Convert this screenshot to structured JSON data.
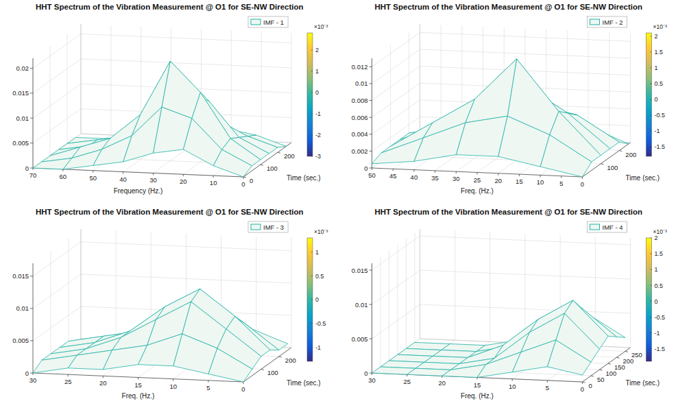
{
  "chart_data": [
    {
      "type": "surface",
      "title": "HHT Spectrum of the Vibration Measurement @ O1 for SE-NW Direction",
      "xlabel": "Frequency (Hz.)",
      "ylabel": "Time (sec.)",
      "series": [
        {
          "name": "IMF - 1",
          "color": "#1fb3a6"
        }
      ],
      "legend": "upper right",
      "grid": true,
      "x": [
        0,
        10,
        20,
        30,
        40,
        50,
        60,
        70
      ],
      "y": [
        0,
        50,
        100,
        150,
        200,
        250
      ],
      "z": [
        [
          0,
          0.002,
          0.005,
          0.004,
          0.002,
          0.001,
          0,
          0
        ],
        [
          0.001,
          0.004,
          0.01,
          0.012,
          0.006,
          0.003,
          0.001,
          0
        ],
        [
          0.001,
          0.005,
          0.014,
          0.02,
          0.009,
          0.004,
          0.002,
          0
        ],
        [
          0.001,
          0.004,
          0.011,
          0.013,
          0.007,
          0.003,
          0.001,
          0
        ],
        [
          0.001,
          0.003,
          0.006,
          0.007,
          0.004,
          0.002,
          0.001,
          0
        ],
        [
          0,
          0.002,
          0.003,
          0.003,
          0.002,
          0.001,
          0,
          0
        ]
      ],
      "xlim": [
        0,
        70
      ],
      "xticks": [
        0,
        10,
        20,
        30,
        40,
        50,
        60,
        70
      ],
      "ylim": [
        0,
        280
      ],
      "yticks": [
        0,
        100,
        200
      ],
      "zlim": [
        0,
        0.022
      ],
      "zticks": [
        0,
        0.005,
        0.01,
        0.015,
        0.02
      ],
      "colorbar": {
        "range": [
          -3,
          2.8
        ],
        "ticks": [
          -3,
          -2,
          -1,
          0,
          1,
          2
        ],
        "label": "×10⁻³"
      }
    },
    {
      "type": "surface",
      "title": "HHT Spectrum of the Vibration Measurement @ O1 for SE-NW Direction",
      "xlabel": "Freq. (Hz.)",
      "ylabel": "Time (sec.)",
      "series": [
        {
          "name": "IMF - 2",
          "color": "#1fb3a6"
        }
      ],
      "legend": "upper right",
      "grid": true,
      "x": [
        0,
        10,
        20,
        30,
        40,
        50
      ],
      "y": [
        0,
        50,
        100,
        150,
        200,
        250
      ],
      "z": [
        [
          0,
          0.001,
          0.002,
          0.002,
          0.001,
          0.0005
        ],
        [
          0.001,
          0.004,
          0.006,
          0.005,
          0.003,
          0.001
        ],
        [
          0.001,
          0.006,
          0.012,
          0.007,
          0.004,
          0.001
        ],
        [
          0.001,
          0.005,
          0.008,
          0.006,
          0.003,
          0.001
        ],
        [
          0.001,
          0.004,
          0.005,
          0.004,
          0.002,
          0.001
        ],
        [
          0,
          0.002,
          0.002,
          0.002,
          0.001,
          0
        ]
      ],
      "xlim": [
        0,
        50
      ],
      "xticks": [
        0,
        5,
        10,
        15,
        20,
        25,
        30,
        35,
        40,
        45,
        50
      ],
      "ylim": [
        0,
        260
      ],
      "yticks": [
        100,
        200
      ],
      "zlim": [
        0,
        0.013
      ],
      "zticks": [
        0,
        0.002,
        0.004,
        0.006,
        0.008,
        0.01,
        0.012
      ],
      "colorbar": {
        "range": [
          -1.8,
          2.1
        ],
        "ticks": [
          -1.5,
          -1,
          -0.5,
          0,
          0.5,
          1,
          1.5,
          2
        ],
        "label": "×10⁻³"
      }
    },
    {
      "type": "surface",
      "title": "HHT Spectrum of the Vibration Measurement @ O1 for SE-NW Direction",
      "xlabel": "Freq. (Hz.)",
      "ylabel": "Time (sec.)",
      "series": [
        {
          "name": "IMF - 3",
          "color": "#1fb3a6"
        }
      ],
      "legend": "upper right",
      "grid": true,
      "x": [
        0,
        5,
        10,
        15,
        20,
        25,
        30
      ],
      "y": [
        0,
        50,
        100,
        150,
        200,
        250
      ],
      "z": [
        [
          0,
          0.001,
          0.002,
          0.002,
          0.001,
          0.001,
          0
        ],
        [
          0.001,
          0.004,
          0.006,
          0.004,
          0.003,
          0.002,
          0.001
        ],
        [
          0.002,
          0.006,
          0.01,
          0.007,
          0.004,
          0.002,
          0.001
        ],
        [
          0.002,
          0.007,
          0.011,
          0.008,
          0.004,
          0.002,
          0.001
        ],
        [
          0.001,
          0.005,
          0.008,
          0.006,
          0.003,
          0.002,
          0.001
        ],
        [
          0.001,
          0.003,
          0.004,
          0.003,
          0.002,
          0.001,
          0
        ]
      ],
      "xlim": [
        0,
        30
      ],
      "xticks": [
        0,
        5,
        10,
        15,
        20,
        25,
        30
      ],
      "ylim": [
        0,
        270
      ],
      "yticks": [
        100,
        200
      ],
      "zlim": [
        0,
        0.017
      ],
      "zticks": [
        0,
        0.005,
        0.01,
        0.015
      ],
      "colorbar": {
        "range": [
          -1.3,
          1.3
        ],
        "ticks": [
          -1,
          -0.5,
          0,
          0.5,
          1
        ],
        "label": "×10⁻³"
      }
    },
    {
      "type": "surface",
      "title": "HHT Spectrum of the Vibration Measurement @ O1 for SE-NW Direction",
      "xlabel": "Freq. (Hz.)",
      "ylabel": "Time (sec.)",
      "series": [
        {
          "name": "IMF - 4",
          "color": "#1fb3a6"
        }
      ],
      "legend": "upper right",
      "grid": true,
      "x": [
        0,
        5,
        10,
        15,
        20,
        25,
        30
      ],
      "y": [
        0,
        50,
        100,
        150,
        200,
        250
      ],
      "z": [
        [
          0.001,
          0.002,
          0.001,
          0,
          0,
          0,
          0
        ],
        [
          0.002,
          0.005,
          0.003,
          0.001,
          0,
          0,
          0
        ],
        [
          0.003,
          0.008,
          0.005,
          0.001,
          0,
          0,
          0
        ],
        [
          0.004,
          0.009,
          0.006,
          0.002,
          0,
          0,
          0
        ],
        [
          0.003,
          0.007,
          0.004,
          0.001,
          0,
          0,
          0
        ],
        [
          0.002,
          0.005,
          0.003,
          0.001,
          0,
          0,
          0
        ]
      ],
      "xlim": [
        0,
        30
      ],
      "xticks": [
        0,
        5,
        10,
        15,
        20,
        25,
        30
      ],
      "ylim": [
        0,
        280
      ],
      "yticks": [
        0,
        50,
        100,
        150,
        200,
        250
      ],
      "zlim": [
        0,
        0.016
      ],
      "zticks": [
        0,
        0.005,
        0.01,
        0.015
      ],
      "colorbar": {
        "range": [
          -1.9,
          2
        ],
        "ticks": [
          -1.5,
          -1,
          -0.5,
          0,
          0.5,
          1,
          1.5,
          2
        ],
        "label": "×10⁻³"
      }
    }
  ]
}
